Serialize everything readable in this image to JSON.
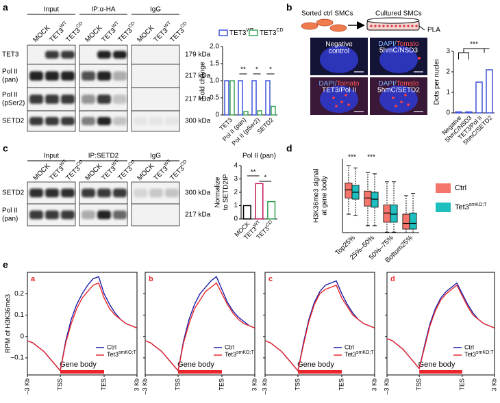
{
  "panel_labels": [
    "a",
    "b",
    "c",
    "d",
    "e"
  ],
  "blots": [
    {
      "groups": [
        "Input",
        "IP:α-HA",
        "IgG"
      ],
      "lanes": [
        {
          "text": "MOCK"
        },
        {
          "text": "TET3",
          "sup": "WT"
        },
        {
          "text": "TET3",
          "sup": "CD"
        },
        {
          "text": "MOCK"
        },
        {
          "text": "TET3",
          "sup": "WT"
        },
        {
          "text": "TET3",
          "sup": "CD"
        },
        {
          "text": "MOCK"
        },
        {
          "text": "TET3",
          "sup": "WT"
        },
        {
          "text": "TET3",
          "sup": "CD"
        }
      ],
      "rows": [
        {
          "label": [
            "TET3"
          ],
          "kda": "179 kDa"
        },
        {
          "label": [
            "Pol II",
            "(pan)"
          ],
          "kda": "217 kDa"
        },
        {
          "label": [
            "Pol II",
            "(pSer2)"
          ],
          "kda": "217 kDa"
        },
        {
          "label": [
            "SETD2"
          ],
          "kda": "300 kDa"
        }
      ]
    },
    {
      "groups": [
        "Input",
        "IP:SETD2",
        "IgG"
      ],
      "lanes": [
        {
          "text": "MOCK"
        },
        {
          "text": "TET3",
          "sup": "WT"
        },
        {
          "text": "TET3",
          "sup": "CD"
        },
        {
          "text": "MOCK"
        },
        {
          "text": "TET3",
          "sup": "WT"
        },
        {
          "text": "TET3",
          "sup": "CD"
        },
        {
          "text": "MOCK"
        },
        {
          "text": "TET3",
          "sup": "WT"
        },
        {
          "text": "TET3",
          "sup": "CD"
        }
      ],
      "rows": [
        {
          "label": [
            "SETD2"
          ],
          "kda": "300 kDa"
        },
        {
          "label": [
            "Pol II",
            "(pan)"
          ],
          "kda": "217 kDa"
        }
      ]
    }
  ],
  "pla": {
    "from": "Sorted ctrl SMCs",
    "to": "Cultured SMCs",
    "method": "PLA",
    "images": [
      {
        "lines": [
          "Negative",
          "control"
        ]
      },
      {
        "stain": [
          "DAPI/",
          "Tomato"
        ],
        "target": "5hmC/NSD3"
      },
      {
        "stain": [
          "DAPI/",
          "Tomato"
        ],
        "target": "TET3/Pol II"
      },
      {
        "stain": [
          "DAPI/",
          "Tomato"
        ],
        "target": "5hmC/SETD2"
      }
    ]
  },
  "chart_data": [
    {
      "type": "bar",
      "ylabel": "Fold change",
      "categories": [
        "TET3",
        "Pol II (pan)",
        "Pol II (pSer2)",
        "SETD2"
      ],
      "series": [
        {
          "name": {
            "text": "TET3",
            "sup": "WT"
          },
          "color": "#3f51d8",
          "values": [
            1.0,
            1.0,
            1.0,
            1.0
          ]
        },
        {
          "name": {
            "text": "TET3",
            "sup": "CD"
          },
          "color": "#3aa655",
          "values": [
            1.0,
            0.1,
            0.12,
            0.25
          ]
        }
      ],
      "ylim": [
        0,
        2
      ],
      "yticks": [
        0,
        0.5,
        {
          "value": 1,
          "label": "1.0"
        },
        1.5,
        {
          "value": 2,
          "label": "2.0"
        }
      ],
      "significance": [
        null,
        "**",
        "*",
        "*"
      ]
    },
    {
      "type": "bar",
      "ylabel": "Dots per nuclei",
      "categories": [
        "Negative",
        "5hmC/NSD3",
        "TET3/Pol II",
        "5hmC/SETD2"
      ],
      "values": [
        0.05,
        0.05,
        1.5,
        2.1
      ],
      "color": "#3f51d8",
      "ylim": [
        0,
        3
      ],
      "yticks": [
        0,
        1,
        2,
        3
      ],
      "significance": "***"
    },
    {
      "type": "bar",
      "title": "Pol II (pan)",
      "ylabel": [
        "Normalize",
        "to SETD2IP"
      ],
      "categories": [
        {
          "text": "MOCK"
        },
        {
          "text": "TET3",
          "sup": "WT"
        },
        {
          "text": "TET3",
          "sup": "CD"
        }
      ],
      "values": [
        1.0,
        2.65,
        1.3
      ],
      "colors": [
        "#000000",
        "#c2185b",
        "#2e9e4f"
      ],
      "ylim": [
        0,
        4
      ],
      "yticks": [
        0,
        1,
        2,
        3,
        4
      ],
      "significance": [
        null,
        "**",
        "*"
      ]
    },
    {
      "type": "box",
      "ylabel": [
        "H3K36me3 signal",
        "at gene body"
      ],
      "categories": [
        "Top25%",
        "25%–50%",
        "50%–75%",
        "Bottom25%"
      ],
      "ylim": [
        0,
        3.2
      ],
      "series": [
        {
          "name": "Ctrl",
          "color": "#f4756b",
          "q1": [
            1.5,
            1.15,
            0.45,
            0.15
          ],
          "median": [
            1.85,
            1.5,
            0.85,
            0.4
          ],
          "q3": [
            2.15,
            1.8,
            1.2,
            0.8
          ],
          "whisker_low": [
            0.8,
            0.3,
            0.02,
            0
          ],
          "whisker_high": [
            2.9,
            2.6,
            2.2,
            1.6
          ]
        },
        {
          "name": {
            "text": "Tet3",
            "sup": "smKO;T"
          },
          "color": "#1fbfbf",
          "q1": [
            1.45,
            1.1,
            0.45,
            0.15
          ],
          "median": [
            1.75,
            1.45,
            0.8,
            0.4
          ],
          "q3": [
            2.05,
            1.75,
            1.2,
            0.85
          ],
          "whisker_low": [
            0.75,
            0.3,
            0.02,
            0
          ],
          "whisker_high": [
            2.8,
            2.55,
            2.2,
            1.7
          ]
        }
      ],
      "significance": [
        "***",
        "***",
        null,
        null
      ]
    },
    {
      "type": "line",
      "label": "a",
      "ylabel": "RPM of H3K36me3",
      "annotation": "Gene body",
      "x": [
        0,
        5,
        10,
        15,
        20,
        25,
        30,
        35,
        40,
        45,
        50,
        55,
        60,
        65,
        70,
        75,
        80,
        85,
        90,
        95,
        100
      ],
      "xlim": [
        0,
        100
      ],
      "xticks": [
        {
          "value": 0,
          "label": "–3 Kb"
        },
        {
          "value": 30,
          "label": "TSS"
        },
        {
          "value": 70,
          "label": "TES"
        },
        {
          "value": 100,
          "label": "3 Kb"
        }
      ],
      "ylim": [
        -0.18,
        0.3
      ],
      "yticks": [
        {
          "value": -0.1,
          "label": "–0.1"
        },
        0,
        0.1,
        0.2
      ],
      "series": [
        {
          "name": "Ctrl",
          "color": "#1c1ca8",
          "values": [
            -0.02,
            -0.03,
            -0.05,
            -0.07,
            -0.1,
            -0.13,
            -0.16,
            -0.02,
            0.08,
            0.15,
            0.2,
            0.24,
            0.27,
            0.28,
            0.2,
            0.15,
            0.11,
            0.08,
            0.06,
            0.05,
            0.04
          ]
        },
        {
          "name": {
            "text": "Tet3",
            "sup": "smKO;T"
          },
          "color": "#e8262b",
          "values": [
            -0.02,
            -0.03,
            -0.05,
            -0.07,
            -0.1,
            -0.13,
            -0.16,
            -0.03,
            0.06,
            0.13,
            0.18,
            0.21,
            0.24,
            0.25,
            0.18,
            0.13,
            0.1,
            0.08,
            0.06,
            0.05,
            0.04
          ]
        }
      ]
    },
    {
      "type": "line",
      "label": "b",
      "annotation": "Gene body",
      "x": [
        0,
        5,
        10,
        15,
        20,
        25,
        30,
        35,
        40,
        45,
        50,
        55,
        60,
        65,
        70,
        75,
        80,
        85,
        90,
        95,
        100
      ],
      "xlim": [
        0,
        100
      ],
      "xticks": [
        {
          "value": 0,
          "label": "–3 Kb"
        },
        {
          "value": 30,
          "label": "TSS"
        },
        {
          "value": 70,
          "label": "TES"
        },
        {
          "value": 100,
          "label": "3 Kb"
        }
      ],
      "ylim": [
        -0.18,
        0.3
      ],
      "yticks": [
        -0.1,
        0,
        0.1,
        0.2
      ],
      "series": [
        {
          "name": "Ctrl",
          "color": "#1c1ca8",
          "values": [
            -0.02,
            -0.03,
            -0.05,
            -0.07,
            -0.1,
            -0.13,
            -0.16,
            -0.02,
            0.08,
            0.15,
            0.2,
            0.23,
            0.26,
            0.28,
            0.22,
            0.16,
            0.12,
            0.09,
            0.07,
            0.05,
            0.04
          ]
        },
        {
          "name": {
            "text": "Tet3",
            "sup": "smKO;T"
          },
          "color": "#e8262b",
          "values": [
            -0.02,
            -0.03,
            -0.05,
            -0.07,
            -0.1,
            -0.13,
            -0.16,
            -0.03,
            0.06,
            0.13,
            0.17,
            0.21,
            0.23,
            0.25,
            0.2,
            0.15,
            0.11,
            0.08,
            0.06,
            0.05,
            0.04
          ]
        }
      ]
    },
    {
      "type": "line",
      "label": "c",
      "annotation": "Gene body",
      "x": [
        0,
        5,
        10,
        15,
        20,
        25,
        30,
        35,
        40,
        45,
        50,
        55,
        60,
        65,
        70,
        75,
        80,
        85,
        90,
        95,
        100
      ],
      "xlim": [
        0,
        100
      ],
      "xticks": [
        {
          "value": 0,
          "label": "–3 Kb"
        },
        {
          "value": 30,
          "label": "TSS"
        },
        {
          "value": 70,
          "label": "TES"
        },
        {
          "value": 100,
          "label": "3 Kb"
        }
      ],
      "ylim": [
        -0.18,
        0.3
      ],
      "yticks": [
        -0.1,
        0,
        0.1,
        0.2
      ],
      "series": [
        {
          "name": "Ctrl",
          "color": "#1c1ca8",
          "values": [
            -0.02,
            -0.03,
            -0.05,
            -0.07,
            -0.1,
            -0.13,
            -0.16,
            -0.03,
            0.08,
            0.16,
            0.21,
            0.24,
            0.25,
            0.26,
            0.2,
            0.15,
            0.11,
            0.08,
            0.06,
            0.05,
            0.04
          ]
        },
        {
          "name": {
            "text": "Tet3",
            "sup": "smKO;T"
          },
          "color": "#e8262b",
          "values": [
            -0.02,
            -0.03,
            -0.05,
            -0.07,
            -0.1,
            -0.13,
            -0.16,
            -0.04,
            0.07,
            0.15,
            0.2,
            0.22,
            0.23,
            0.24,
            0.18,
            0.14,
            0.1,
            0.08,
            0.06,
            0.05,
            0.04
          ]
        }
      ]
    },
    {
      "type": "line",
      "label": "d",
      "annotation": "Gene body",
      "x": [
        0,
        5,
        10,
        15,
        20,
        25,
        30,
        35,
        40,
        45,
        50,
        55,
        60,
        65,
        70,
        75,
        80,
        85,
        90,
        95,
        100
      ],
      "xlim": [
        0,
        100
      ],
      "xticks": [
        {
          "value": 0,
          "label": "–3 Kb"
        },
        {
          "value": 30,
          "label": "TSS"
        },
        {
          "value": 70,
          "label": "TES"
        },
        {
          "value": 100,
          "label": "3 Kb"
        }
      ],
      "ylim": [
        -0.18,
        0.3
      ],
      "yticks": [
        -0.1,
        0,
        0.1,
        0.2
      ],
      "series": [
        {
          "name": "Ctrl",
          "color": "#1c1ca8",
          "values": [
            -0.01,
            -0.02,
            -0.04,
            -0.06,
            -0.09,
            -0.12,
            -0.15,
            -0.04,
            0.06,
            0.13,
            0.18,
            0.21,
            0.23,
            0.25,
            0.2,
            0.15,
            0.11,
            0.08,
            0.06,
            0.05,
            0.04
          ]
        },
        {
          "name": {
            "text": "Tet3",
            "sup": "smKO;T"
          },
          "color": "#e8262b",
          "values": [
            -0.01,
            -0.02,
            -0.04,
            -0.06,
            -0.09,
            -0.12,
            -0.15,
            -0.05,
            0.05,
            0.12,
            0.17,
            0.2,
            0.22,
            0.24,
            0.19,
            0.14,
            0.1,
            0.08,
            0.06,
            0.05,
            0.04
          ]
        }
      ]
    }
  ]
}
